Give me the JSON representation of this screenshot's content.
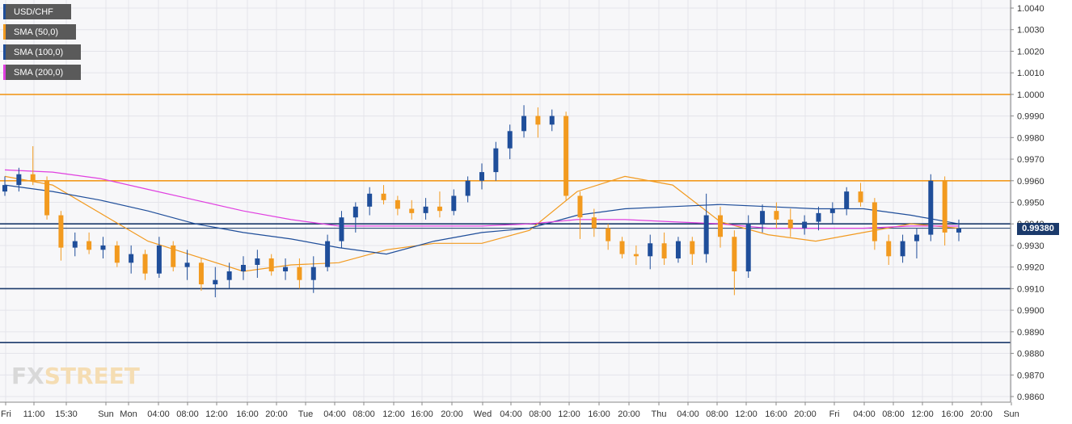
{
  "legend": [
    {
      "label": "USD/CHF",
      "color": "#1f4e9a"
    },
    {
      "label": "SMA (50,0)",
      "color": "#f29a1f"
    },
    {
      "label": "SMA (100,0)",
      "color": "#1f4e9a"
    },
    {
      "label": "SMA (200,0)",
      "color": "#e040e0"
    }
  ],
  "logo": {
    "fx": "FX",
    "street": "STREET"
  },
  "current_price_label": "0.99380",
  "chart_data": {
    "type": "candlestick",
    "symbol": "USD/CHF",
    "y_axis": {
      "ylim": [
        0.9855,
        1.0045
      ],
      "ticks": [
        "1.0040",
        "1.0030",
        "1.0020",
        "1.0010",
        "1.0000",
        "0.9990",
        "0.9980",
        "0.9970",
        "0.9960",
        "0.9950",
        "0.9940",
        "0.9930",
        "0.9920",
        "0.9910",
        "0.9900",
        "0.9890",
        "0.9880",
        "0.9870",
        "0.9860"
      ]
    },
    "x_axis": {
      "ticks": [
        "Fri",
        "11:00",
        "15:30",
        "Sun",
        "Mon",
        "04:00",
        "08:00",
        "12:00",
        "16:00",
        "20:00",
        "Tue",
        "04:00",
        "08:00",
        "12:00",
        "16:00",
        "20:00",
        "Wed",
        "04:00",
        "08:00",
        "12:00",
        "16:00",
        "20:00",
        "Thu",
        "04:00",
        "08:00",
        "12:00",
        "16:00",
        "20:00",
        "Fri",
        "04:00",
        "08:00",
        "12:00",
        "16:00",
        "20:00",
        "Sun"
      ]
    },
    "horizontal_levels": [
      {
        "value": 1.0,
        "color": "#f29a1f"
      },
      {
        "value": 0.996,
        "color": "#f29a1f"
      },
      {
        "value": 0.994,
        "color": "#1b3a6b"
      },
      {
        "value": 0.991,
        "color": "#1b3a6b"
      },
      {
        "value": 0.9885,
        "color": "#1b3a6b"
      }
    ],
    "current_price": 0.9938,
    "grid": true,
    "legend_position": "top-left",
    "candle_colors": {
      "up": "#1f4e9a",
      "down": "#f29a1f"
    },
    "sma_series": [
      {
        "name": "SMA (50,0)",
        "color": "#f29a1f",
        "values": [
          0.9962,
          0.9958,
          0.9945,
          0.9932,
          0.9925,
          0.9918,
          0.9921,
          0.9922,
          0.9928,
          0.9931,
          0.9931,
          0.9937,
          0.9955,
          0.9962,
          0.9958,
          0.9941,
          0.9935,
          0.9932,
          0.9936,
          0.994,
          0.9938
        ]
      },
      {
        "name": "SMA (100,0)",
        "color": "#1f4e9a",
        "values": [
          0.9958,
          0.9955,
          0.9951,
          0.9946,
          0.994,
          0.9936,
          0.9933,
          0.9929,
          0.9926,
          0.9932,
          0.9936,
          0.9938,
          0.9944,
          0.9947,
          0.9948,
          0.9949,
          0.9948,
          0.9947,
          0.9947,
          0.9944,
          0.994
        ]
      },
      {
        "name": "SMA (200,0)",
        "color": "#e040e0",
        "values": [
          0.9965,
          0.9964,
          0.9961,
          0.9956,
          0.9951,
          0.9946,
          0.9942,
          0.9939,
          0.9939,
          0.9939,
          0.9939,
          0.994,
          0.9942,
          0.9942,
          0.9941,
          0.994,
          0.9938,
          0.9938,
          0.9938,
          0.9939,
          0.9939
        ]
      }
    ],
    "candles": [
      {
        "o": 0.9955,
        "h": 0.9962,
        "l": 0.9953,
        "c": 0.9958
      },
      {
        "o": 0.9958,
        "h": 0.9966,
        "l": 0.9955,
        "c": 0.9963
      },
      {
        "o": 0.9963,
        "h": 0.9976,
        "l": 0.9958,
        "c": 0.996
      },
      {
        "o": 0.996,
        "h": 0.9962,
        "l": 0.9942,
        "c": 0.9944
      },
      {
        "o": 0.9944,
        "h": 0.9946,
        "l": 0.9923,
        "c": 0.9929
      },
      {
        "o": 0.9929,
        "h": 0.9936,
        "l": 0.9925,
        "c": 0.9932
      },
      {
        "o": 0.9932,
        "h": 0.9936,
        "l": 0.9926,
        "c": 0.9928
      },
      {
        "o": 0.9928,
        "h": 0.9934,
        "l": 0.9924,
        "c": 0.993
      },
      {
        "o": 0.993,
        "h": 0.9932,
        "l": 0.992,
        "c": 0.9922
      },
      {
        "o": 0.9922,
        "h": 0.993,
        "l": 0.9917,
        "c": 0.9926
      },
      {
        "o": 0.9926,
        "h": 0.9928,
        "l": 0.9914,
        "c": 0.9917
      },
      {
        "o": 0.9917,
        "h": 0.9934,
        "l": 0.9915,
        "c": 0.993
      },
      {
        "o": 0.993,
        "h": 0.9932,
        "l": 0.9918,
        "c": 0.992
      },
      {
        "o": 0.992,
        "h": 0.9928,
        "l": 0.9914,
        "c": 0.9922
      },
      {
        "o": 0.9922,
        "h": 0.9924,
        "l": 0.9909,
        "c": 0.9912
      },
      {
        "o": 0.9912,
        "h": 0.992,
        "l": 0.9906,
        "c": 0.9914
      },
      {
        "o": 0.9914,
        "h": 0.9922,
        "l": 0.991,
        "c": 0.9918
      },
      {
        "o": 0.9918,
        "h": 0.9925,
        "l": 0.9914,
        "c": 0.9921
      },
      {
        "o": 0.9921,
        "h": 0.9928,
        "l": 0.9915,
        "c": 0.9924
      },
      {
        "o": 0.9924,
        "h": 0.9926,
        "l": 0.9916,
        "c": 0.9918
      },
      {
        "o": 0.9918,
        "h": 0.9924,
        "l": 0.9914,
        "c": 0.992
      },
      {
        "o": 0.992,
        "h": 0.9924,
        "l": 0.991,
        "c": 0.9914
      },
      {
        "o": 0.9914,
        "h": 0.9925,
        "l": 0.9908,
        "c": 0.992
      },
      {
        "o": 0.992,
        "h": 0.9935,
        "l": 0.9918,
        "c": 0.9932
      },
      {
        "o": 0.9932,
        "h": 0.9946,
        "l": 0.9929,
        "c": 0.9943
      },
      {
        "o": 0.9943,
        "h": 0.995,
        "l": 0.9936,
        "c": 0.9948
      },
      {
        "o": 0.9948,
        "h": 0.9957,
        "l": 0.9944,
        "c": 0.9954
      },
      {
        "o": 0.9954,
        "h": 0.9958,
        "l": 0.9949,
        "c": 0.9951
      },
      {
        "o": 0.9951,
        "h": 0.9953,
        "l": 0.9944,
        "c": 0.9947
      },
      {
        "o": 0.9947,
        "h": 0.9951,
        "l": 0.9942,
        "c": 0.9945
      },
      {
        "o": 0.9945,
        "h": 0.9952,
        "l": 0.9942,
        "c": 0.9948
      },
      {
        "o": 0.9948,
        "h": 0.9955,
        "l": 0.9943,
        "c": 0.9946
      },
      {
        "o": 0.9946,
        "h": 0.9956,
        "l": 0.9944,
        "c": 0.9953
      },
      {
        "o": 0.9953,
        "h": 0.9962,
        "l": 0.995,
        "c": 0.996
      },
      {
        "o": 0.996,
        "h": 0.9968,
        "l": 0.9956,
        "c": 0.9964
      },
      {
        "o": 0.9964,
        "h": 0.9978,
        "l": 0.996,
        "c": 0.9975
      },
      {
        "o": 0.9975,
        "h": 0.9986,
        "l": 0.997,
        "c": 0.9983
      },
      {
        "o": 0.9983,
        "h": 0.9995,
        "l": 0.998,
        "c": 0.999
      },
      {
        "o": 0.999,
        "h": 0.9994,
        "l": 0.998,
        "c": 0.9986
      },
      {
        "o": 0.9986,
        "h": 0.9993,
        "l": 0.9983,
        "c": 0.999
      },
      {
        "o": 0.999,
        "h": 0.9992,
        "l": 0.9951,
        "c": 0.9953
      },
      {
        "o": 0.9953,
        "h": 0.9955,
        "l": 0.9933,
        "c": 0.9943
      },
      {
        "o": 0.9943,
        "h": 0.9947,
        "l": 0.9934,
        "c": 0.9938
      },
      {
        "o": 0.9938,
        "h": 0.994,
        "l": 0.9928,
        "c": 0.9932
      },
      {
        "o": 0.9932,
        "h": 0.9934,
        "l": 0.9924,
        "c": 0.9926
      },
      {
        "o": 0.9926,
        "h": 0.993,
        "l": 0.9921,
        "c": 0.9925
      },
      {
        "o": 0.9925,
        "h": 0.9935,
        "l": 0.9919,
        "c": 0.9931
      },
      {
        "o": 0.9931,
        "h": 0.9936,
        "l": 0.9921,
        "c": 0.9924
      },
      {
        "o": 0.9924,
        "h": 0.9934,
        "l": 0.9922,
        "c": 0.9932
      },
      {
        "o": 0.9932,
        "h": 0.9934,
        "l": 0.9921,
        "c": 0.9926
      },
      {
        "o": 0.9926,
        "h": 0.9954,
        "l": 0.9922,
        "c": 0.9944
      },
      {
        "o": 0.9944,
        "h": 0.9948,
        "l": 0.9929,
        "c": 0.9934
      },
      {
        "o": 0.9934,
        "h": 0.9937,
        "l": 0.9907,
        "c": 0.9918
      },
      {
        "o": 0.9918,
        "h": 0.9944,
        "l": 0.9915,
        "c": 0.994
      },
      {
        "o": 0.994,
        "h": 0.9949,
        "l": 0.9936,
        "c": 0.9946
      },
      {
        "o": 0.9946,
        "h": 0.995,
        "l": 0.9938,
        "c": 0.9942
      },
      {
        "o": 0.9942,
        "h": 0.9947,
        "l": 0.9934,
        "c": 0.9938
      },
      {
        "o": 0.9938,
        "h": 0.9944,
        "l": 0.9935,
        "c": 0.9941
      },
      {
        "o": 0.9941,
        "h": 0.9948,
        "l": 0.9937,
        "c": 0.9945
      },
      {
        "o": 0.9945,
        "h": 0.995,
        "l": 0.994,
        "c": 0.9947
      },
      {
        "o": 0.9947,
        "h": 0.9957,
        "l": 0.9944,
        "c": 0.9955
      },
      {
        "o": 0.9955,
        "h": 0.9959,
        "l": 0.9948,
        "c": 0.995
      },
      {
        "o": 0.995,
        "h": 0.9952,
        "l": 0.9928,
        "c": 0.9932
      },
      {
        "o": 0.9932,
        "h": 0.9935,
        "l": 0.9921,
        "c": 0.9925
      },
      {
        "o": 0.9925,
        "h": 0.9935,
        "l": 0.9922,
        "c": 0.9932
      },
      {
        "o": 0.9932,
        "h": 0.9938,
        "l": 0.9924,
        "c": 0.9935
      },
      {
        "o": 0.9935,
        "h": 0.9963,
        "l": 0.9932,
        "c": 0.996
      },
      {
        "o": 0.996,
        "h": 0.9962,
        "l": 0.993,
        "c": 0.9936
      },
      {
        "o": 0.9936,
        "h": 0.9942,
        "l": 0.9932,
        "c": 0.9938
      }
    ]
  }
}
